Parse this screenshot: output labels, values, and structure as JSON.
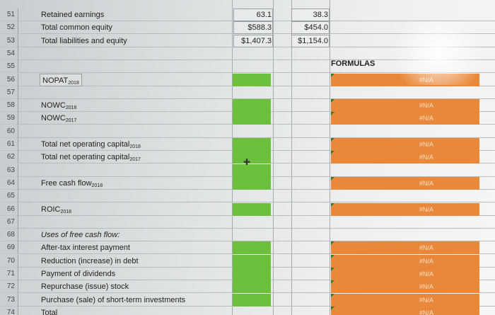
{
  "rows": [
    {
      "num": "51",
      "label": "Retained earnings",
      "c1": "63.1",
      "c2": "38.3"
    },
    {
      "num": "52",
      "label": "Total common equity",
      "c1": "$588.3",
      "c2": "$454.0"
    },
    {
      "num": "53",
      "label": "Total liabilities and equity",
      "c1": "$1,407.3",
      "c2": "$1,154.0"
    },
    {
      "num": "54"
    },
    {
      "num": "55"
    },
    {
      "num": "56",
      "label": "NOPAT",
      "sub": "2018"
    },
    {
      "num": "57"
    },
    {
      "num": "58",
      "label": "NOWC",
      "sub": "2018"
    },
    {
      "num": "59",
      "label": "NOWC",
      "sub": "2017"
    },
    {
      "num": "60"
    },
    {
      "num": "61",
      "label": "Total net operating capital",
      "sub": "2018"
    },
    {
      "num": "62",
      "label": "Total net operating capital",
      "sub": "2017"
    },
    {
      "num": "63"
    },
    {
      "num": "64",
      "label": "Free cash flow",
      "sub": "2018"
    },
    {
      "num": "65"
    },
    {
      "num": "66",
      "label": "ROIC",
      "sub": "2018"
    },
    {
      "num": "67"
    },
    {
      "num": "68",
      "label": "Uses of free cash flow:"
    },
    {
      "num": "69",
      "label": "After-tax interest payment"
    },
    {
      "num": "70",
      "label": "Reduction (increase) in debt"
    },
    {
      "num": "71",
      "label": "Payment of dividends"
    },
    {
      "num": "72",
      "label": "Repurchase (issue) stock"
    },
    {
      "num": "73",
      "label": "Purchase (sale) of short-term investments"
    },
    {
      "num": "74",
      "label": "Total"
    }
  ],
  "formulas_label": "FORMULAS",
  "na_text": "#N/A"
}
